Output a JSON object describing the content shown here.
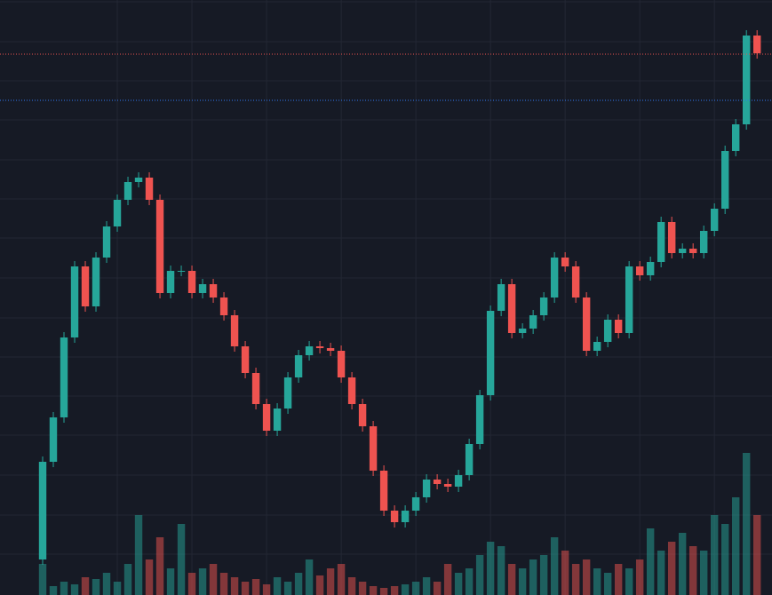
{
  "chart_data": {
    "type": "candlestick",
    "up_color": "#26a69a",
    "down_color": "#ef5350",
    "grid": true,
    "grid_color": "#232734",
    "xlim": [
      -4,
      68.4
    ],
    "xticks": [
      7,
      14,
      21,
      28,
      35,
      42,
      49,
      56,
      63
    ],
    "ylim": [
      0,
      670
    ],
    "yticks": [
      46,
      90,
      135,
      180,
      224,
      268,
      312,
      357,
      402,
      446,
      490,
      535,
      579,
      623,
      668
    ],
    "y2lim": [
      0,
      670
    ],
    "open": [
      40,
      150,
      200,
      290,
      370,
      325,
      380,
      415,
      445,
      465,
      470,
      445,
      340,
      365,
      365,
      340,
      350,
      335,
      315,
      280,
      250,
      215,
      185,
      210,
      245,
      270,
      280,
      278,
      275,
      245,
      215,
      190,
      140,
      95,
      82,
      95,
      110,
      130,
      125,
      122,
      135,
      170,
      225,
      320,
      350,
      295,
      300,
      315,
      335,
      380,
      370,
      335,
      275,
      285,
      310,
      295,
      370,
      360,
      375,
      420,
      385,
      390,
      385,
      410,
      435,
      500,
      530,
      630
    ],
    "high": [
      156,
      206,
      296,
      376,
      376,
      386,
      421,
      451,
      471,
      476,
      476,
      451,
      371,
      371,
      371,
      356,
      356,
      341,
      321,
      286,
      256,
      221,
      216,
      251,
      276,
      286,
      286,
      284,
      281,
      251,
      221,
      196,
      146,
      101,
      101,
      116,
      136,
      136,
      131,
      141,
      176,
      231,
      326,
      356,
      356,
      306,
      321,
      341,
      386,
      386,
      376,
      341,
      291,
      316,
      316,
      376,
      376,
      381,
      426,
      426,
      396,
      396,
      416,
      441,
      506,
      536,
      636,
      636
    ],
    "low": [
      34,
      144,
      194,
      284,
      319,
      319,
      374,
      409,
      439,
      459,
      439,
      334,
      334,
      359,
      334,
      334,
      329,
      309,
      274,
      244,
      209,
      179,
      179,
      204,
      239,
      264,
      272,
      269,
      239,
      209,
      184,
      134,
      89,
      76,
      76,
      89,
      104,
      119,
      116,
      116,
      129,
      164,
      219,
      314,
      289,
      289,
      294,
      309,
      329,
      364,
      329,
      269,
      269,
      279,
      289,
      289,
      354,
      354,
      369,
      379,
      379,
      379,
      379,
      404,
      429,
      494,
      524,
      604
    ],
    "close": [
      150,
      200,
      290,
      370,
      325,
      380,
      415,
      445,
      465,
      470,
      445,
      340,
      365,
      365,
      340,
      350,
      335,
      315,
      280,
      250,
      215,
      185,
      210,
      245,
      270,
      280,
      278,
      275,
      245,
      215,
      190,
      140,
      95,
      82,
      95,
      110,
      130,
      125,
      122,
      135,
      170,
      225,
      320,
      350,
      295,
      300,
      315,
      335,
      380,
      370,
      335,
      275,
      285,
      310,
      295,
      370,
      360,
      375,
      420,
      385,
      390,
      385,
      410,
      435,
      500,
      530,
      630,
      610
    ],
    "volume": [
      35,
      10,
      15,
      12,
      20,
      18,
      25,
      15,
      35,
      90,
      40,
      65,
      30,
      80,
      25,
      30,
      35,
      25,
      20,
      15,
      18,
      12,
      20,
      15,
      25,
      40,
      22,
      30,
      35,
      20,
      15,
      10,
      8,
      10,
      12,
      15,
      20,
      15,
      35,
      25,
      30,
      45,
      60,
      55,
      35,
      30,
      40,
      45,
      65,
      50,
      35,
      40,
      30,
      25,
      35,
      30,
      40,
      75,
      50,
      60,
      70,
      55,
      50,
      90,
      80,
      110,
      160,
      90
    ],
    "price_lines": [
      {
        "value": 609,
        "color": "#ef5350"
      },
      {
        "value": 557,
        "color": "#3179f5"
      }
    ]
  }
}
